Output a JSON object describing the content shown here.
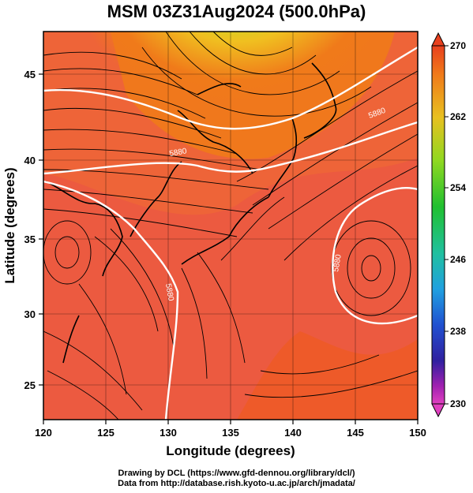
{
  "title": "MSM 03Z31Aug2024 (500.0hPa)",
  "xlabel": "Longitude (degrees)",
  "ylabel": "Latitude  (degrees)",
  "x_ticks": [
    "120",
    "125",
    "130",
    "135",
    "140",
    "145",
    "150"
  ],
  "y_ticks": [
    "25",
    "30",
    "35",
    "40",
    "45"
  ],
  "colorbar": {
    "labels": [
      "270",
      "262",
      "254",
      "246",
      "238",
      "230"
    ],
    "values": [
      270,
      262,
      254,
      246,
      238,
      230
    ],
    "colors": [
      "#e8401e",
      "#f07a1a",
      "#e8c020",
      "#90d820",
      "#20c030",
      "#20c0a0",
      "#20a0e0",
      "#2050d0",
      "#3020a0",
      "#a020b0",
      "#e040c0"
    ]
  },
  "contour_labels": [
    "5880",
    "5880",
    "5880",
    "5880"
  ],
  "credits": {
    "line1": "Drawing by DCL (https://www.gfd-dennou.org/library/dcl/)",
    "line2": "Data from http://database.rish.kyoto-u.ac.jp/arch/jmadata/"
  },
  "chart_data": {
    "type": "heatmap",
    "title": "MSM 03Z31Aug2024 (500.0hPa)",
    "xlabel": "Longitude (degrees)",
    "ylabel": "Latitude  (degrees)",
    "xlim": [
      120,
      150
    ],
    "ylim": [
      22.4,
      47.6
    ],
    "colorbar_range": [
      230,
      270
    ],
    "field_description": "temperature-like colour field with streamlines and 5880 height contours",
    "values_min_region": {
      "lon": 136,
      "lat": 46.5,
      "value": 259
    },
    "values_bulk": 268
  }
}
